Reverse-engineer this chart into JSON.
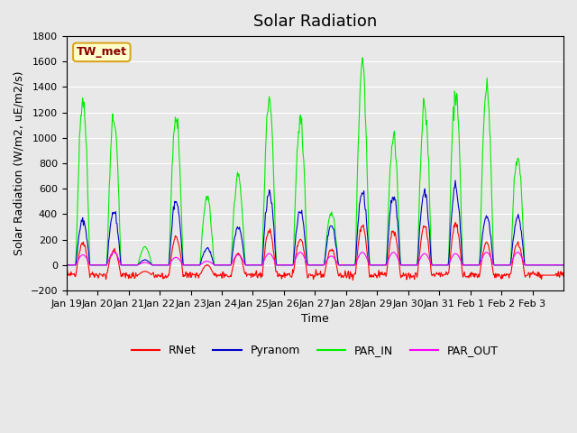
{
  "title": "Solar Radiation",
  "ylabel": "Solar Radiation (W/m2, uE/m2/s)",
  "xlabel": "Time",
  "ylim": [
    -200,
    1800
  ],
  "yticks": [
    -200,
    0,
    200,
    400,
    600,
    800,
    1000,
    1200,
    1400,
    1600,
    1800
  ],
  "xtick_labels": [
    "Jan 19",
    "Jan 20",
    "Jan 21",
    "Jan 22",
    "Jan 23",
    "Jan 24",
    "Jan 25",
    "Jan 26",
    "Jan 27",
    "Jan 28",
    "Jan 29",
    "Jan 30",
    "Jan 31",
    "Feb 1",
    "Feb 2",
    "Feb 3"
  ],
  "xtick_positions": [
    0,
    1,
    2,
    3,
    4,
    5,
    6,
    7,
    8,
    9,
    10,
    11,
    12,
    13,
    14,
    15
  ],
  "station_label": "TW_met",
  "legend_entries": [
    "RNet",
    "Pyranom",
    "PAR_IN",
    "PAR_OUT"
  ],
  "line_colors": [
    "#ff0000",
    "#0000cc",
    "#00ee00",
    "#ff00ff"
  ],
  "plot_bg_color": "#e8e8e8",
  "grid_color": "#ffffff",
  "title_fontsize": 13,
  "axis_fontsize": 9,
  "tick_fontsize": 8,
  "num_days": 16,
  "pts_per_day": 48
}
